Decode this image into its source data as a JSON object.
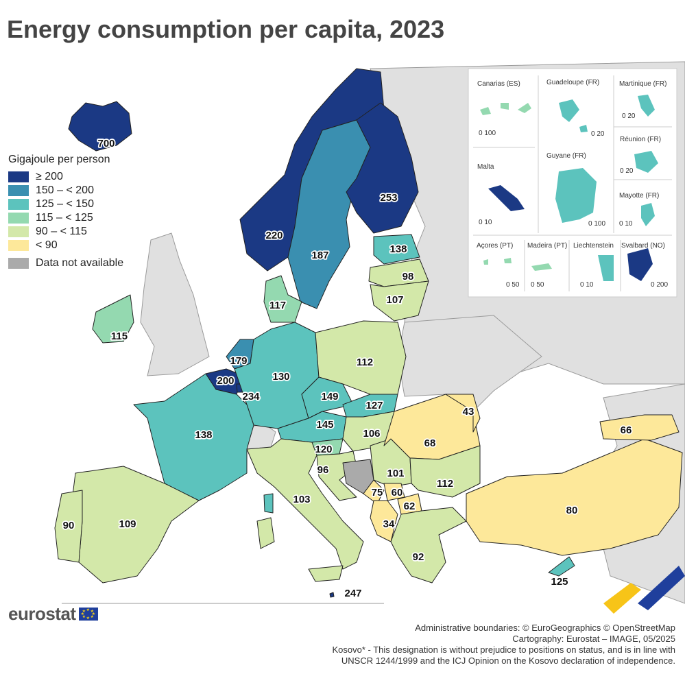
{
  "title": "Energy consumption per capita, 2023",
  "legend": {
    "title": "Gigajoule per person",
    "classes": [
      {
        "label": "≥ 200",
        "color": "#1b3984"
      },
      {
        "label": "150 – < 200",
        "color": "#3a8fb0"
      },
      {
        "label": "125 – < 150",
        "color": "#5cc3bd"
      },
      {
        "label": "115 – < 125",
        "color": "#94d9b0"
      },
      {
        "label": "90 – < 115",
        "color": "#d3e8a9"
      },
      {
        "label": "< 90",
        "color": "#fde89a"
      }
    ],
    "na": {
      "label": "Data not available",
      "color": "#aaaaaa"
    }
  },
  "colors": {
    "non_eu": "#e0e0e0",
    "sea": "#ffffff",
    "border": "#222222"
  },
  "values": {
    "iceland": "700",
    "norway": "220",
    "sweden": "187",
    "finland": "253",
    "estonia": "138",
    "latvia": "98",
    "lithuania": "107",
    "denmark": "117",
    "ireland": "115",
    "netherlands": "179",
    "belgium": "200",
    "luxembourg": "234",
    "germany": "130",
    "poland": "112",
    "czechia": "149",
    "slovakia": "127",
    "austria": "145",
    "hungary": "106",
    "slovenia": "120",
    "croatia": "96",
    "serbia": "101",
    "romania": "68",
    "moldova": "43",
    "bulgaria": "112",
    "montenegro": "75",
    "kosovo": "60",
    "north_macedonia": "62",
    "albania": "34",
    "greece": "92",
    "turkey": "80",
    "georgia": "66",
    "italy": "103",
    "malta": "247",
    "cyprus": "125",
    "france": "138",
    "spain": "109",
    "portugal": "90"
  },
  "insets": {
    "canarias": {
      "title": "Canarias (ES)",
      "scale": "0   100"
    },
    "guadeloupe": {
      "title": "Guadeloupe (FR)",
      "scale": "0 20"
    },
    "martinique": {
      "title": "Martinique (FR)",
      "scale": "0 20"
    },
    "reunion": {
      "title": "Réunion (FR)",
      "scale": "0 20"
    },
    "malta": {
      "title": "Malta",
      "scale": "0  10"
    },
    "guyane": {
      "title": "Guyane (FR)",
      "scale": "0   100"
    },
    "mayotte": {
      "title": "Mayotte (FR)",
      "scale": "0 10"
    },
    "acores": {
      "title": "Açores (PT)",
      "scale": "0 50"
    },
    "madeira": {
      "title": "Madeira (PT)",
      "scale": "0   50"
    },
    "liechtenstein": {
      "title": "Liechtenstein",
      "scale": "0 10"
    },
    "svalbard": {
      "title": "Svalbard (NO)",
      "scale": "0   200"
    }
  },
  "brand": "eurostat",
  "footer": [
    "Administrative boundaries: © EuroGeographics © OpenStreetMap",
    "Cartography: Eurostat – IMAGE, 05/2025",
    "Kosovo* - This designation is without prejudice to positions on status, and is in line with",
    "UNSCR 1244/1999 and the ICJ Opinion on the Kosovo declaration of independence."
  ]
}
